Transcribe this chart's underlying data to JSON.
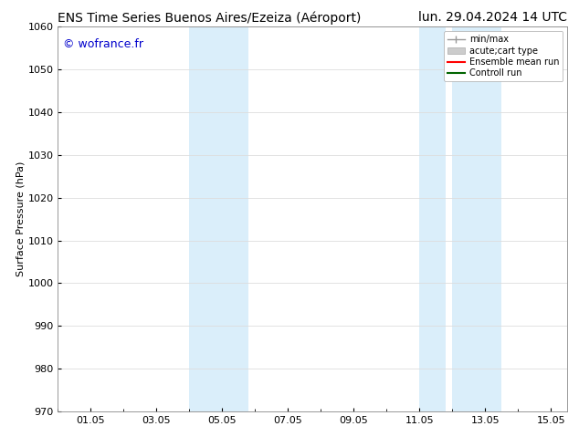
{
  "title_left": "ENS Time Series Buenos Aires/Ezeiza (Aéroport)",
  "title_right": "lun. 29.04.2024 14 UTC",
  "ylabel": "Surface Pressure (hPa)",
  "watermark": "© wofrance.fr",
  "watermark_color": "#0000cc",
  "ylim": [
    970,
    1060
  ],
  "yticks": [
    970,
    980,
    990,
    1000,
    1010,
    1020,
    1030,
    1040,
    1050,
    1060
  ],
  "xtick_labels": [
    "01.05",
    "03.05",
    "05.05",
    "07.05",
    "09.05",
    "11.05",
    "13.05",
    "15.05"
  ],
  "xtick_positions": [
    1,
    3,
    5,
    7,
    9,
    11,
    13,
    15
  ],
  "xlim": [
    0,
    15.5
  ],
  "shaded_regions": [
    {
      "xmin": 4.0,
      "xmax": 4.8,
      "color": "#daeefa"
    },
    {
      "xmin": 4.8,
      "xmax": 5.8,
      "color": "#daeefa"
    },
    {
      "xmin": 11.0,
      "xmax": 11.8,
      "color": "#daeefa"
    },
    {
      "xmin": 12.0,
      "xmax": 13.5,
      "color": "#daeefa"
    }
  ],
  "bg_color": "#ffffff",
  "plot_bg_color": "#ffffff",
  "grid_color": "#dddddd",
  "title_fontsize": 10,
  "axis_fontsize": 8,
  "tick_fontsize": 8,
  "legend_fontsize": 7,
  "watermark_fontsize": 9
}
